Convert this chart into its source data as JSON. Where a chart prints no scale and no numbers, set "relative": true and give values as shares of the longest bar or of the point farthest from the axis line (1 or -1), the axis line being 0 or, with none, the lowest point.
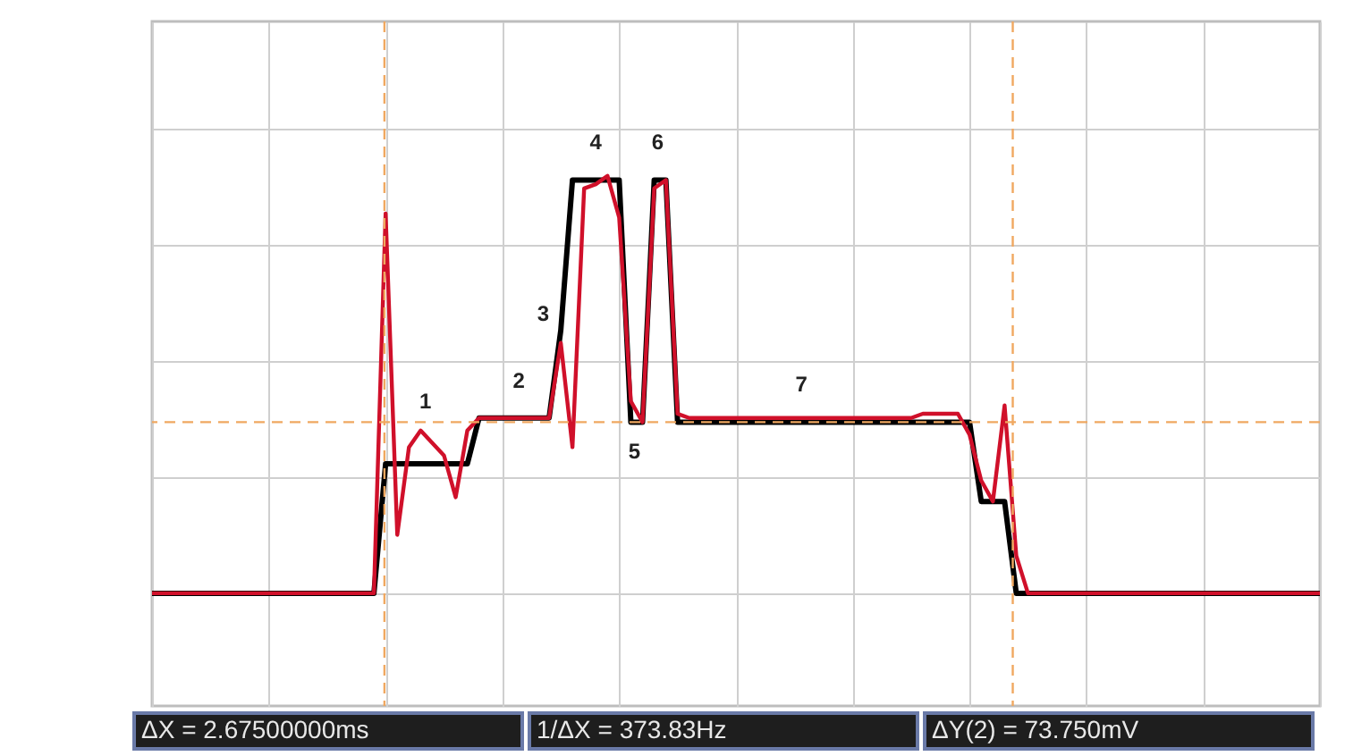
{
  "chart_data": {
    "type": "line",
    "relative": true,
    "categories": [
      null,
      null,
      null,
      null,
      null,
      null,
      null,
      null,
      null,
      null,
      null,
      null,
      null,
      null,
      null,
      null,
      null,
      null,
      null,
      null,
      null,
      null,
      null,
      null,
      null,
      null,
      null,
      null,
      null,
      null,
      null,
      null,
      null,
      null,
      null,
      null,
      null,
      null,
      null,
      null,
      null,
      null,
      null,
      null,
      null,
      null,
      null,
      null,
      null,
      null,
      null,
      null,
      null,
      null,
      null,
      null,
      null,
      null,
      null,
      null,
      null,
      null,
      null,
      null,
      null,
      null,
      null,
      null,
      null,
      null,
      null,
      null,
      null,
      null,
      null,
      null,
      null,
      null,
      null,
      null,
      null,
      null,
      null,
      null,
      null,
      null,
      null,
      null,
      null,
      null,
      null,
      null,
      null,
      null,
      null,
      null,
      null,
      null,
      null,
      null,
      null
    ],
    "tick_labels": false,
    "grid": true,
    "marker": "none",
    "line_style": "solid",
    "series": [
      {
        "color": "#d0102a",
        "values": [
          0,
          0,
          0,
          0,
          0,
          0,
          0,
          0,
          0,
          0,
          0,
          0,
          0,
          0,
          0,
          0,
          0,
          0,
          0,
          0,
          0.91,
          0.14,
          0.35,
          0.39,
          0.36,
          0.33,
          0.23,
          0.39,
          0.42,
          0.42,
          0.42,
          0.42,
          0.42,
          0.42,
          0.42,
          0.6,
          0.35,
          0.97,
          0.98,
          1,
          0.9,
          0.46,
          0.41,
          0.97,
          0.99,
          0.43,
          0.42,
          0.42,
          0.42,
          0.42,
          0.42,
          0.42,
          0.42,
          0.42,
          0.42,
          0.42,
          0.42,
          0.42,
          0.42,
          0.42,
          0.42,
          0.42,
          0.42,
          0.42,
          0.42,
          0.42,
          0.43,
          0.43,
          0.43,
          0.43,
          0.38,
          0.27,
          0.22,
          0.45,
          0.09,
          0,
          0,
          0,
          0,
          0,
          0,
          0,
          0,
          0,
          0,
          0,
          0,
          0,
          0,
          0,
          0,
          0,
          0,
          0,
          0,
          0,
          0,
          0,
          0,
          0,
          0
        ]
      },
      {
        "color": "#000000",
        "values": [
          0,
          0,
          0,
          0,
          0,
          0,
          0,
          0,
          0,
          0,
          0,
          0,
          0,
          0,
          0,
          0,
          0,
          0,
          0,
          0,
          0.31,
          0.31,
          0.31,
          0.31,
          0.31,
          0.31,
          0.31,
          0.31,
          0.42,
          0.42,
          0.42,
          0.42,
          0.42,
          0.42,
          0.42,
          0.63,
          0.99,
          0.99,
          0.99,
          0.99,
          0.99,
          0.41,
          0.41,
          0.99,
          0.99,
          0.41,
          0.41,
          0.41,
          0.41,
          0.41,
          0.41,
          0.41,
          0.41,
          0.41,
          0.41,
          0.41,
          0.41,
          0.41,
          0.41,
          0.41,
          0.41,
          0.41,
          0.41,
          0.41,
          0.41,
          0.41,
          0.41,
          0.41,
          0.41,
          0.41,
          0.41,
          0.22,
          0.22,
          0.22,
          0,
          0,
          0,
          0,
          0,
          0,
          0,
          0,
          0,
          0,
          0,
          0,
          0,
          0,
          0,
          0,
          0,
          0,
          0,
          0,
          0,
          0,
          0,
          0,
          0,
          0,
          0
        ]
      }
    ],
    "ref_lines": [
      {
        "axis": "y",
        "value": 0.41,
        "color": "#f0a860",
        "line_style": "dashed"
      }
    ],
    "annotations": [
      "1",
      "2",
      "3",
      "4",
      "5",
      "6",
      "7",
      "ΔX = 2.67500000ms",
      "1/ΔX = 373.83Hz",
      "ΔY(2) = 73.750mV"
    ]
  }
}
